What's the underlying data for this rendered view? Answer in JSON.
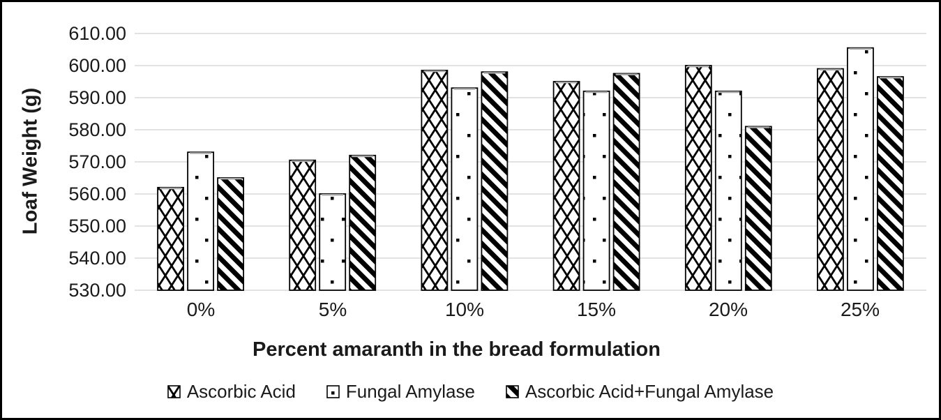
{
  "frame": {
    "background": "#ffffff",
    "border_color": "#000000"
  },
  "chart_data": {
    "type": "bar",
    "title": "",
    "xlabel": "Percent amaranth in the bread formulation",
    "ylabel": "Loaf Weight (g)",
    "categories": [
      "0%",
      "5%",
      "10%",
      "15%",
      "20%",
      "25%"
    ],
    "series": [
      {
        "name": "Ascorbic Acid",
        "pattern": "crosshatch",
        "values": [
          562.0,
          570.5,
          598.5,
          595.0,
          600.0,
          599.0
        ]
      },
      {
        "name": "Fungal Amylase",
        "pattern": "dots",
        "values": [
          573.0,
          560.0,
          593.0,
          592.0,
          592.0,
          605.5
        ]
      },
      {
        "name": "Ascorbic Acid+Fungal Amylase",
        "pattern": "diagonal-stripes",
        "values": [
          565.0,
          572.0,
          598.0,
          597.5,
          581.0,
          596.5
        ]
      }
    ],
    "ylim": [
      530,
      610
    ],
    "ytick_step": 10,
    "ytick_labels": [
      "610.00",
      "600.00",
      "590.00",
      "580.00",
      "570.00",
      "560.00",
      "550.00",
      "540.00",
      "530.00"
    ],
    "grid": "horizontal",
    "gridline_color": "#d9d9d9",
    "bar_fill": "#ffffff",
    "bar_pattern_color": "#000000",
    "bar_outline_color": "#000000",
    "bar_cap_color": "#a6a6a6",
    "legend_position": "bottom"
  }
}
